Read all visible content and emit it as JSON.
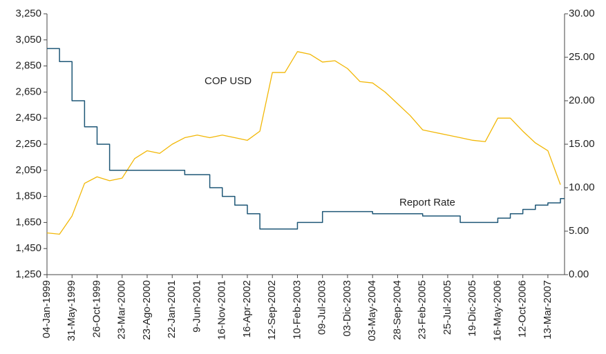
{
  "chart_data": {
    "type": "line",
    "step_series": "Report Rate",
    "categories": [
      "04-Jan-1999",
      null,
      "31-May-1999",
      null,
      "26-Oct-1999",
      null,
      "23-Mar-2000",
      null,
      "23-Ago-2000",
      null,
      "22-Jan-2001",
      null,
      "9-Jun-2001",
      null,
      "16-Nov-2001",
      null,
      "16-Apr-2002",
      null,
      "12-Sep-2002",
      null,
      "10-Feb-2003",
      null,
      "09-Jul-2003",
      null,
      "03-Dic-2003",
      null,
      "03-May-2004",
      null,
      "28-Sep-2004",
      null,
      "23-Feb-2005",
      null,
      "25-Jul-2005",
      null,
      "19-Dic-2005",
      null,
      "16-May-2006",
      null,
      "12-Oct-2006",
      null,
      "13-Mar-2007",
      null
    ],
    "series": [
      {
        "name": "COP USD",
        "color": "#f2b705",
        "axis": "y",
        "values": [
          1570,
          1560,
          1700,
          1950,
          2000,
          1970,
          1990,
          2140,
          2200,
          2180,
          2250,
          2300,
          2320,
          2300,
          2320,
          2300,
          2280,
          2350,
          2800,
          2800,
          2960,
          2940,
          2880,
          2890,
          2830,
          2730,
          2720,
          2650,
          2560,
          2470,
          2360,
          2340,
          2320,
          2300,
          2280,
          2270,
          2450,
          2450,
          2350,
          2260,
          2200,
          1940
        ]
      },
      {
        "name": "Report Rate",
        "color": "#1d5676",
        "axis": "y2",
        "values": [
          26,
          24.5,
          20,
          17,
          15,
          12,
          12,
          12,
          12,
          12,
          12,
          11.5,
          11.5,
          10,
          9,
          8,
          7,
          5.25,
          5.25,
          5.25,
          6,
          6,
          7.25,
          7.25,
          7.25,
          7.25,
          7,
          7,
          7,
          7,
          6.75,
          6.75,
          6.75,
          6,
          6,
          6,
          6.5,
          7,
          7.5,
          8,
          8.25,
          8.75
        ]
      }
    ],
    "ylim": [
      1250,
      3250
    ],
    "yticks": [
      {
        "value": 1250,
        "label": "1,250"
      },
      {
        "value": 1450,
        "label": "1,450"
      },
      {
        "value": 1650,
        "label": "1,650"
      },
      {
        "value": 1850,
        "label": "1,850"
      },
      {
        "value": 2050,
        "label": "2,050"
      },
      {
        "value": 2250,
        "label": "2,250"
      },
      {
        "value": 2450,
        "label": "2,450"
      },
      {
        "value": 2650,
        "label": "2,650"
      },
      {
        "value": 2850,
        "label": "2,850"
      },
      {
        "value": 3050,
        "label": "3,050"
      },
      {
        "value": 3250,
        "label": "3,250"
      }
    ],
    "y2lim": [
      0,
      30
    ],
    "y2ticks": [
      {
        "value": 0,
        "label": "0.00"
      },
      {
        "value": 5,
        "label": "5.00"
      },
      {
        "value": 10,
        "label": "10.00"
      },
      {
        "value": 15,
        "label": "15.00"
      },
      {
        "value": 20,
        "label": "20.00"
      },
      {
        "value": 25,
        "label": "25.00"
      },
      {
        "value": 30,
        "label": "30.00"
      }
    ],
    "grid": false
  }
}
